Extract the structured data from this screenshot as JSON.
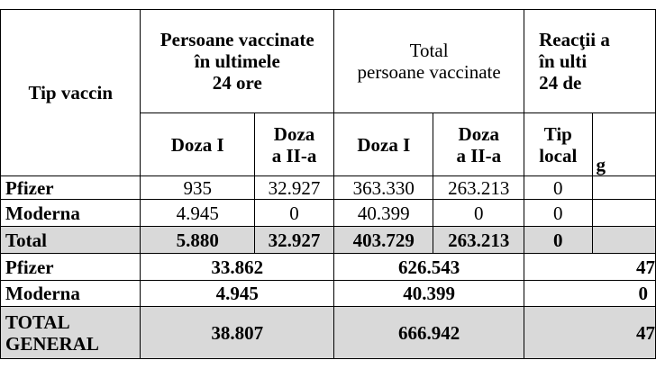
{
  "header": {
    "tip_vaccin": "Tip vaccin",
    "group_24h": "Persoane vaccinate\nîn ultimele\n24 ore",
    "group_total": "Total\npersoane vaccinate",
    "group_reactii": "Reacţii a\nîn ulti\n24 de",
    "doza1": "Doza I",
    "doza2": "Doza\na II-a",
    "tip_local": "Tip\nlocal",
    "cut_col": "g"
  },
  "rows": [
    {
      "name": "Pfizer",
      "d1_24h": "935",
      "d2_24h": "32.927",
      "d1_tot": "363.330",
      "d2_tot": "263.213",
      "local": "0"
    },
    {
      "name": "Moderna",
      "d1_24h": "4.945",
      "d2_24h": "0",
      "d1_tot": "40.399",
      "d2_tot": "0",
      "local": "0"
    },
    {
      "name": "Total",
      "d1_24h": "5.880",
      "d2_24h": "32.927",
      "d1_tot": "403.729",
      "d2_tot": "263.213",
      "local": "0"
    }
  ],
  "summary": [
    {
      "name": "Pfizer",
      "v24h": "33.862",
      "vtot": "626.543",
      "vreac": "47"
    },
    {
      "name": "Moderna",
      "v24h": "4.945",
      "vtot": "40.399",
      "vreac": "0"
    },
    {
      "name": "TOTAL\nGENERAL",
      "v24h": "38.807",
      "vtot": "666.942",
      "vreac": "47"
    }
  ]
}
